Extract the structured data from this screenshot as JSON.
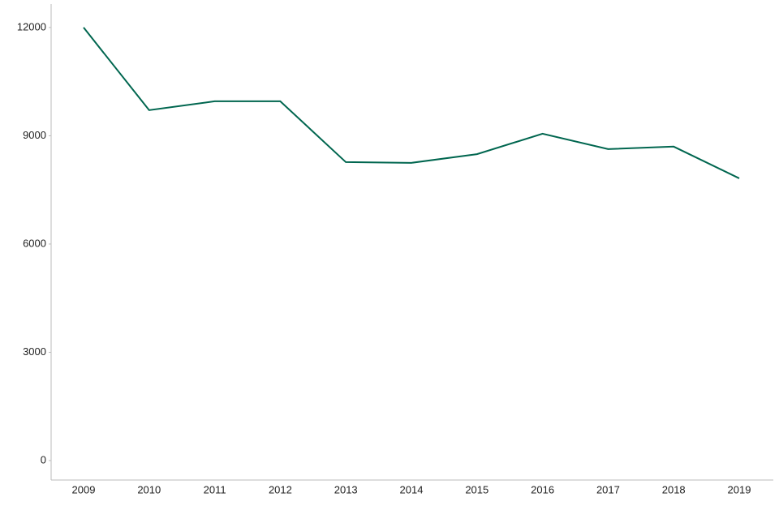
{
  "chart_data": {
    "type": "line",
    "categories": [
      "2009",
      "2010",
      "2011",
      "2012",
      "2013",
      "2014",
      "2015",
      "2016",
      "2017",
      "2018",
      "2019"
    ],
    "values": [
      12000,
      9710,
      9955,
      9955,
      8270,
      8250,
      8490,
      9056,
      8630,
      8700,
      7820
    ],
    "color": "#00664f",
    "ylim": [
      -540,
      12650
    ],
    "yticks": [
      0,
      3000,
      6000,
      9000,
      12000
    ],
    "grid": false
  }
}
